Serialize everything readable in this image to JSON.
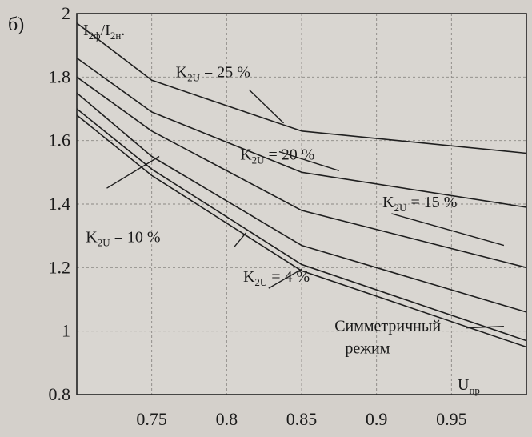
{
  "panel_label": "б)",
  "chart_data": {
    "type": "line",
    "ylabel_main": "I",
    "ylabel_sub1": "2ф",
    "ylabel_sep": "/I",
    "ylabel_sub2": "2н",
    "ylabel_tail": ".",
    "xlabel_main": "U",
    "xlabel_sub": "пр",
    "xlim": [
      0.7,
      1.0
    ],
    "ylim": [
      0.8,
      2.0
    ],
    "xticks": [
      {
        "value": 0.75,
        "label": "0.75"
      },
      {
        "value": 0.8,
        "label": "0.8"
      },
      {
        "value": 0.85,
        "label": "0.85"
      },
      {
        "value": 0.9,
        "label": "0.9"
      },
      {
        "value": 0.95,
        "label": "0.95"
      }
    ],
    "yticks": [
      {
        "value": 0.8,
        "label": "0.8"
      },
      {
        "value": 1.0,
        "label": "1"
      },
      {
        "value": 1.2,
        "label": "1.2"
      },
      {
        "value": 1.4,
        "label": "1.4"
      },
      {
        "value": 1.6,
        "label": "1.6"
      },
      {
        "value": 1.8,
        "label": "1.8"
      },
      {
        "value": 2.0,
        "label": "2"
      }
    ],
    "grid": true,
    "series": [
      {
        "key": "k25",
        "x": [
          0.7,
          0.75,
          0.85,
          1.0
        ],
        "y": [
          1.97,
          1.79,
          1.63,
          1.56
        ]
      },
      {
        "key": "k20",
        "x": [
          0.7,
          0.75,
          0.85,
          1.0
        ],
        "y": [
          1.86,
          1.69,
          1.5,
          1.39
        ]
      },
      {
        "key": "k15",
        "x": [
          0.7,
          0.75,
          0.85,
          1.0
        ],
        "y": [
          1.8,
          1.63,
          1.38,
          1.2
        ]
      },
      {
        "key": "k10",
        "x": [
          0.7,
          0.75,
          0.85,
          1.0
        ],
        "y": [
          1.75,
          1.55,
          1.27,
          1.06
        ]
      },
      {
        "key": "k4",
        "x": [
          0.7,
          0.75,
          0.85,
          1.0
        ],
        "y": [
          1.7,
          1.51,
          1.21,
          0.97
        ]
      },
      {
        "key": "sym",
        "x": [
          0.7,
          0.75,
          0.85,
          1.0
        ],
        "y": [
          1.68,
          1.49,
          1.19,
          0.95
        ]
      }
    ],
    "annotations": [
      {
        "key": "k25",
        "main": "K",
        "sub": "2U",
        "value": " = 25 %"
      },
      {
        "key": "k20",
        "main": "K",
        "sub": "2U",
        "value": " = 20 %"
      },
      {
        "key": "k15",
        "main": "K",
        "sub": "2U",
        "value": " = 15 %"
      },
      {
        "key": "k10",
        "main": "K",
        "sub": "2U",
        "value": " = 10 %"
      },
      {
        "key": "k4",
        "main": "K",
        "sub": "2U",
        "value": " = 4 %"
      },
      {
        "key": "sym1",
        "main": "Симметричный",
        "sub": "",
        "value": ""
      },
      {
        "key": "sym2",
        "main": "режим",
        "sub": "",
        "value": ""
      }
    ]
  }
}
